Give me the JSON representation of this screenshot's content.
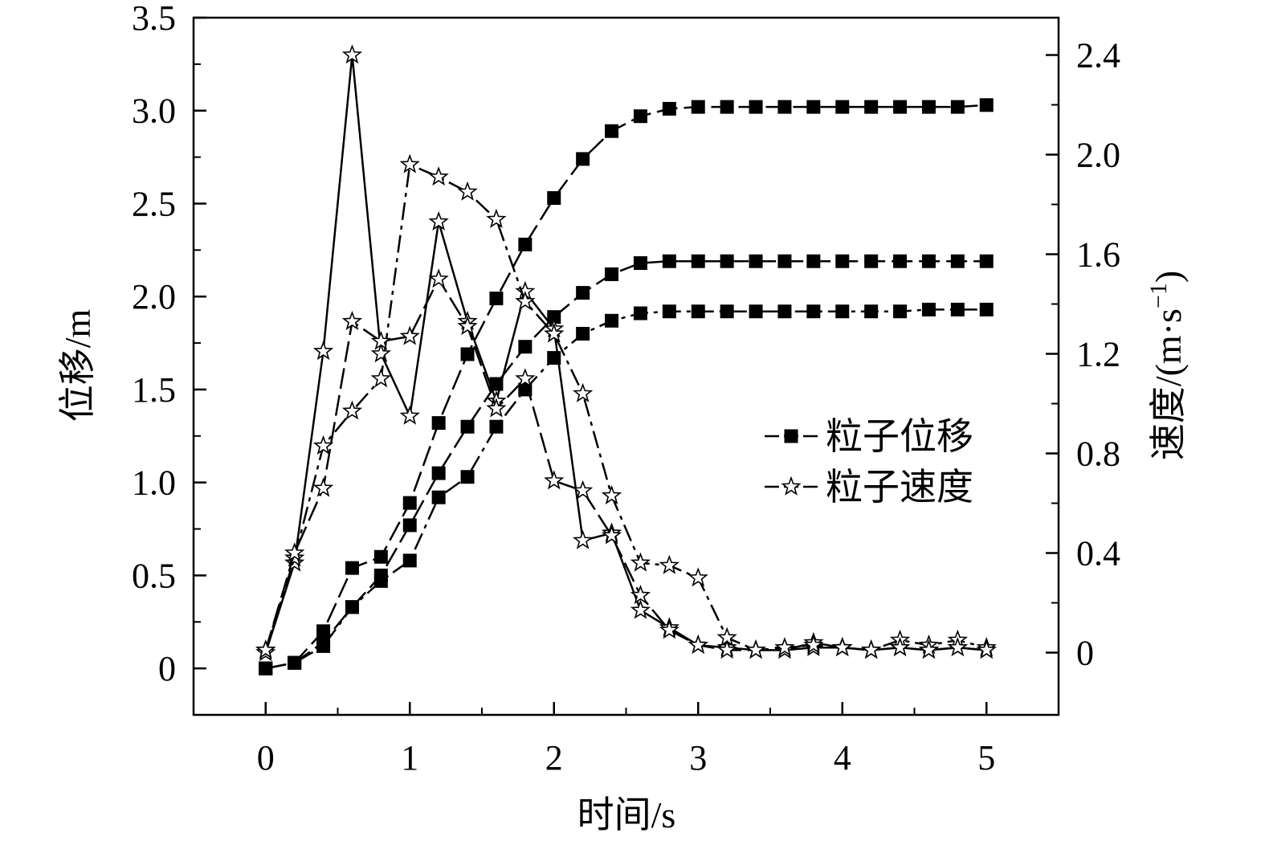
{
  "chart_data": {
    "type": "line",
    "xlabel": "时间/s",
    "ylabel_left": "位移/m",
    "ylabel_right": "速度/(m·s",
    "ylabel_right_sup": "−1",
    "ylabel_right_close": ")",
    "xlim": [
      -0.5,
      5.5
    ],
    "ylim_left": [
      -0.25,
      3.5
    ],
    "ylim_right": [
      -0.25,
      2.55
    ],
    "x_ticks": [
      0,
      1,
      2,
      3,
      4,
      5
    ],
    "x_tick_labels": [
      "0",
      "1",
      "2",
      "3",
      "4",
      "5"
    ],
    "y_left_ticks": [
      0,
      0.5,
      1.0,
      1.5,
      2.0,
      2.5,
      3.0,
      3.5
    ],
    "y_left_tick_labels": [
      "0",
      "0.5",
      "1.0",
      "1.5",
      "2.0",
      "2.5",
      "3.0",
      "3.5"
    ],
    "y_right_ticks": [
      0,
      0.4,
      0.8,
      1.2,
      1.6,
      2.0,
      2.4
    ],
    "y_right_tick_labels": [
      "0",
      "0.4",
      "0.8",
      "1.2",
      "1.6",
      "2.0",
      "2.4"
    ],
    "legend": {
      "position": "center-right",
      "entries": [
        {
          "label": "粒子位移",
          "marker": "square"
        },
        {
          "label": "粒子速度",
          "marker": "star"
        }
      ]
    },
    "x": [
      0,
      0.2,
      0.4,
      0.6,
      0.8,
      1.0,
      1.2,
      1.4,
      1.6,
      1.8,
      2.0,
      2.2,
      2.4,
      2.6,
      2.8,
      3.0,
      3.2,
      3.4,
      3.6,
      3.8,
      4.0,
      4.2,
      4.4,
      4.6,
      4.8,
      5.0
    ],
    "series": [
      {
        "axis": "left",
        "marker": "square",
        "dash": "long-dash",
        "values": [
          0,
          0.03,
          0.2,
          0.54,
          0.6,
          0.89,
          1.32,
          1.69,
          1.99,
          2.28,
          2.53,
          2.74,
          2.89,
          2.97,
          3.01,
          3.02,
          3.02,
          3.02,
          3.02,
          3.02,
          3.02,
          3.02,
          3.02,
          3.02,
          3.02,
          3.03
        ]
      },
      {
        "axis": "left",
        "marker": "square",
        "dash": "long-dash",
        "values": [
          0,
          0.03,
          0.14,
          0.33,
          0.5,
          0.77,
          1.05,
          1.3,
          1.53,
          1.73,
          1.89,
          2.02,
          2.12,
          2.18,
          2.19,
          2.19,
          2.19,
          2.19,
          2.19,
          2.19,
          2.19,
          2.19,
          2.19,
          2.19,
          2.19,
          2.19
        ]
      },
      {
        "axis": "left",
        "marker": "square",
        "dash": "dash-dot",
        "values": [
          0,
          0.03,
          0.12,
          0.33,
          0.47,
          0.58,
          0.92,
          1.03,
          1.3,
          1.5,
          1.67,
          1.8,
          1.87,
          1.91,
          1.92,
          1.92,
          1.92,
          1.92,
          1.92,
          1.92,
          1.92,
          1.92,
          1.92,
          1.93,
          1.93,
          1.93
        ]
      },
      {
        "axis": "right",
        "marker": "star",
        "dash": "solid",
        "values": [
          0,
          0.36,
          1.21,
          2.4,
          1.2,
          0.95,
          1.73,
          1.33,
          1.01,
          1.45,
          1.3,
          0.45,
          0.48,
          0.17,
          0.1,
          0.03,
          0.02,
          0.01,
          0.01,
          0.02,
          0.02,
          0.01,
          0.02,
          0.01,
          0.02,
          0.01
        ]
      },
      {
        "axis": "right",
        "marker": "star",
        "dash": "dash-dot",
        "values": [
          0.01,
          0.38,
          0.83,
          0.97,
          1.1,
          1.96,
          1.91,
          1.85,
          1.74,
          1.41,
          1.28,
          1.04,
          0.63,
          0.36,
          0.35,
          0.3,
          0.06,
          0.01,
          0.01,
          0.04,
          0.02,
          0.01,
          0.05,
          0.03,
          0.05,
          0.02
        ]
      },
      {
        "axis": "right",
        "marker": "star",
        "dash": "long-dash",
        "values": [
          0.01,
          0.4,
          0.66,
          1.33,
          1.25,
          1.27,
          1.5,
          1.31,
          0.98,
          1.1,
          0.69,
          0.65,
          0.47,
          0.23,
          0.09,
          0.03,
          0.01,
          0.01,
          0.02,
          0.03,
          0.02,
          0.01,
          0.02,
          0.01,
          0.02,
          0.01
        ]
      }
    ]
  }
}
